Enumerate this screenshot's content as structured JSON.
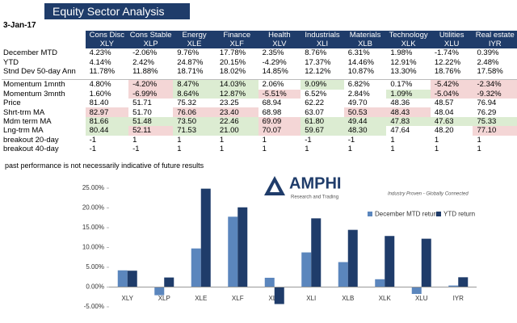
{
  "header": {
    "title": "Equity Sector  Analysis",
    "date": "3-Jan-17"
  },
  "table": {
    "columns": [
      {
        "name": "Cons Disc",
        "ticker": "XLY"
      },
      {
        "name": "Cons Stable",
        "ticker": "XLP"
      },
      {
        "name": "Energy",
        "ticker": "XLE"
      },
      {
        "name": "Finance",
        "ticker": "XLF"
      },
      {
        "name": "Health",
        "ticker": "XLV"
      },
      {
        "name": "Industrials",
        "ticker": "XLI"
      },
      {
        "name": "Materials",
        "ticker": "XLB"
      },
      {
        "name": "Technology",
        "ticker": "XLK"
      },
      {
        "name": "Utilities",
        "ticker": "XLU"
      },
      {
        "name": "Real estate",
        "ticker": "IYR"
      }
    ],
    "rows": [
      {
        "label": "December MTD",
        "cells": [
          "4.23%",
          "-2.06%",
          "9.76%",
          "17.78%",
          "2.35%",
          "8.76%",
          "6.31%",
          "1.98%",
          "-1.74%",
          "0.39%"
        ]
      },
      {
        "label": "YTD",
        "cells": [
          "4.14%",
          "2.42%",
          "24.87%",
          "20.15%",
          "-4.29%",
          "17.37%",
          "14.46%",
          "12.91%",
          "12.22%",
          "2.48%"
        ]
      },
      {
        "label": "Stnd Dev 50-day Ann",
        "cells": [
          "11.78%",
          "11.88%",
          "18.71%",
          "18.02%",
          "14.85%",
          "12.12%",
          "10.87%",
          "13.30%",
          "18.76%",
          "17.58%"
        ]
      },
      {
        "label": "Momentum 1mnth",
        "cells": [
          "4.80%",
          "-4.20%",
          "8.47%",
          "14.03%",
          "2.06%",
          "9.09%",
          "6.82%",
          "0.17%",
          "-5.42%",
          "-2.34%"
        ],
        "highlights": [
          null,
          "#f4d6d6",
          "#dcecd2",
          "#dcecd2",
          null,
          "#dcecd2",
          null,
          null,
          "#f4d6d6",
          "#f4d6d6"
        ]
      },
      {
        "label": "Momentum 3mnth",
        "cells": [
          "1.60%",
          "-6.99%",
          "8.64%",
          "12.87%",
          "-5.51%",
          "6.52%",
          "2.84%",
          "1.09%",
          "-5.04%",
          "-9.32%"
        ],
        "highlights": [
          null,
          "#f4d6d6",
          "#dcecd2",
          "#dcecd2",
          "#f4d6d6",
          null,
          null,
          "#dcecd2",
          "#f4d6d6",
          "#f4d6d6"
        ]
      },
      {
        "label": "Price",
        "cells": [
          "81.40",
          "51.71",
          "75.32",
          "23.25",
          "68.94",
          "62.22",
          "49.70",
          "48.36",
          "48.57",
          "76.94"
        ]
      },
      {
        "label": "Shrt-trm MA",
        "cells": [
          "82.97",
          "51.70",
          "76.06",
          "23.40",
          "68.98",
          "63.07",
          "50.53",
          "48.43",
          "48.04",
          "76.29"
        ],
        "highlights": [
          "#f4d6d6",
          null,
          "#f4d6d6",
          "#f4d6d6",
          null,
          null,
          "#f4d6d6",
          "#f4d6d6",
          null,
          null
        ]
      },
      {
        "label": "Mdm term MA",
        "cells": [
          "81.66",
          "51.48",
          "73.50",
          "22.46",
          "69.09",
          "61.80",
          "49.44",
          "47.83",
          "47.63",
          "75.33"
        ],
        "highlights": [
          "#dcecd2",
          "#dcecd2",
          "#dcecd2",
          "#dcecd2",
          "#f4d6d6",
          "#dcecd2",
          "#dcecd2",
          "#dcecd2",
          "#dcecd2",
          "#dcecd2"
        ]
      },
      {
        "label": "Lng-trm MA",
        "cells": [
          "80.44",
          "52.11",
          "71.53",
          "21.00",
          "70.07",
          "59.67",
          "48.30",
          "47.64",
          "48.20",
          "77.10"
        ],
        "highlights": [
          "#dcecd2",
          "#f4d6d6",
          "#dcecd2",
          "#dcecd2",
          "#f4d6d6",
          "#dcecd2",
          "#dcecd2",
          null,
          null,
          "#f4d6d6"
        ]
      },
      {
        "label": "breakout 20-day",
        "cells": [
          "-1",
          "1",
          "1",
          "1",
          "1",
          "-1",
          "-1",
          "1",
          "1",
          "1"
        ]
      },
      {
        "label": "breakout 40-day",
        "cells": [
          "-1",
          "-1",
          "1",
          "1",
          "1",
          "1",
          "1",
          "1",
          "1",
          "1"
        ]
      }
    ]
  },
  "note": "past performance is not necessarily indicative of future results",
  "logo": {
    "name": "AMPHI",
    "subtitle": "Research and Trading",
    "tagline": "Industry Proven - Globally Connected"
  },
  "chart_data": {
    "type": "bar",
    "categories": [
      "XLY",
      "XLP",
      "XLE",
      "XLF",
      "XLV",
      "XLI",
      "XLB",
      "XLK",
      "XLU",
      "IYR"
    ],
    "series": [
      {
        "name": "December MTD return",
        "color": "#5b86bd",
        "values": [
          4.23,
          -2.06,
          9.76,
          17.78,
          2.35,
          8.76,
          6.31,
          1.98,
          -1.74,
          0.39
        ]
      },
      {
        "name": "YTD return",
        "color": "#1f3c6a",
        "values": [
          4.14,
          2.42,
          24.87,
          20.15,
          -4.29,
          17.37,
          14.46,
          12.91,
          12.22,
          2.48
        ]
      }
    ],
    "ylim": [
      -5,
      25
    ],
    "yticks": [
      {
        "value": -5,
        "label": "-5.00%"
      },
      {
        "value": 0,
        "label": "0.00%"
      },
      {
        "value": 5,
        "label": "5.00%"
      },
      {
        "value": 10,
        "label": "10.00%"
      },
      {
        "value": 15,
        "label": "15.00%"
      },
      {
        "value": 20,
        "label": "20.00%"
      },
      {
        "value": 25,
        "label": "25.00%"
      }
    ],
    "legend": "right"
  }
}
